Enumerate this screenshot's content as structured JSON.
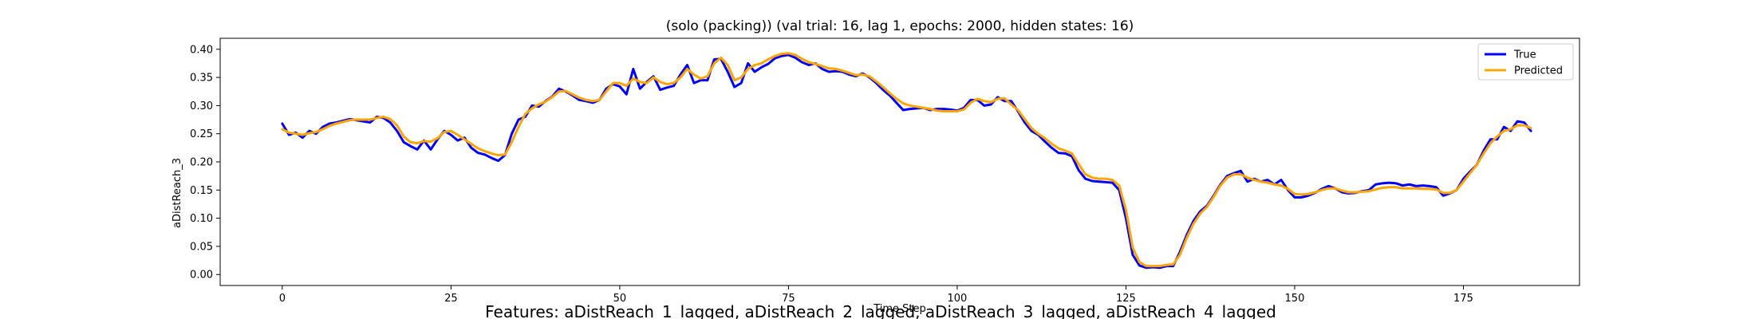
{
  "chart_data": {
    "type": "line",
    "title": "(solo (packing)) (val trial: 16, lag 1, epochs: 2000, hidden states: 16)",
    "xlabel": "Time Step",
    "ylabel": "aDistReach_3",
    "caption": "Features: aDistReach_1_lagged, aDistReach_2_lagged, aDistReach_3_lagged, aDistReach_4_lagged",
    "xlim": [
      -9.2,
      192.2
    ],
    "ylim": [
      -0.0195,
      0.4195
    ],
    "xticks": [
      0,
      25,
      50,
      75,
      100,
      125,
      150,
      175
    ],
    "yticks": [
      0.0,
      0.05,
      0.1,
      0.15,
      0.2,
      0.25,
      0.3,
      0.35,
      0.4
    ],
    "ytick_labels": [
      "0.00",
      "0.05",
      "0.10",
      "0.15",
      "0.20",
      "0.25",
      "0.30",
      "0.35",
      "0.40"
    ],
    "grid": false,
    "legend_position": "top-right",
    "series": [
      {
        "name": "True",
        "color": "#0000ff",
        "values": [
          0.268,
          0.248,
          0.252,
          0.243,
          0.255,
          0.25,
          0.262,
          0.268,
          0.27,
          0.273,
          0.276,
          0.274,
          0.272,
          0.27,
          0.28,
          0.278,
          0.27,
          0.255,
          0.235,
          0.228,
          0.222,
          0.238,
          0.222,
          0.24,
          0.255,
          0.248,
          0.238,
          0.243,
          0.225,
          0.216,
          0.213,
          0.207,
          0.202,
          0.212,
          0.25,
          0.275,
          0.28,
          0.3,
          0.298,
          0.308,
          0.316,
          0.33,
          0.325,
          0.318,
          0.31,
          0.308,
          0.305,
          0.31,
          0.33,
          0.338,
          0.334,
          0.32,
          0.365,
          0.33,
          0.342,
          0.352,
          0.328,
          0.332,
          0.335,
          0.355,
          0.372,
          0.34,
          0.345,
          0.345,
          0.382,
          0.383,
          0.36,
          0.333,
          0.34,
          0.375,
          0.36,
          0.368,
          0.374,
          0.384,
          0.388,
          0.39,
          0.385,
          0.377,
          0.372,
          0.375,
          0.365,
          0.36,
          0.361,
          0.36,
          0.355,
          0.352,
          0.357,
          0.35,
          0.34,
          0.328,
          0.318,
          0.305,
          0.292,
          0.294,
          0.295,
          0.296,
          0.292,
          0.294,
          0.294,
          0.293,
          0.291,
          0.296,
          0.31,
          0.31,
          0.3,
          0.302,
          0.315,
          0.308,
          0.308,
          0.29,
          0.27,
          0.255,
          0.248,
          0.236,
          0.225,
          0.216,
          0.215,
          0.21,
          0.185,
          0.17,
          0.166,
          0.165,
          0.164,
          0.163,
          0.15,
          0.1,
          0.035,
          0.016,
          0.012,
          0.013,
          0.012,
          0.015,
          0.015,
          0.04,
          0.07,
          0.095,
          0.112,
          0.122,
          0.14,
          0.16,
          0.175,
          0.18,
          0.184,
          0.165,
          0.17,
          0.165,
          0.168,
          0.16,
          0.168,
          0.15,
          0.137,
          0.137,
          0.14,
          0.145,
          0.152,
          0.157,
          0.153,
          0.146,
          0.144,
          0.145,
          0.148,
          0.15,
          0.16,
          0.162,
          0.163,
          0.162,
          0.158,
          0.16,
          0.157,
          0.158,
          0.157,
          0.155,
          0.14,
          0.144,
          0.15,
          0.17,
          0.183,
          0.195,
          0.22,
          0.24,
          0.24,
          0.262,
          0.255,
          0.272,
          0.27,
          0.255
        ]
      },
      {
        "name": "Predicted",
        "color": "#ffa500",
        "values": [
          0.258,
          0.252,
          0.25,
          0.248,
          0.251,
          0.253,
          0.258,
          0.264,
          0.268,
          0.271,
          0.274,
          0.275,
          0.275,
          0.275,
          0.278,
          0.28,
          0.276,
          0.265,
          0.245,
          0.235,
          0.233,
          0.237,
          0.236,
          0.242,
          0.253,
          0.255,
          0.248,
          0.24,
          0.232,
          0.224,
          0.219,
          0.215,
          0.212,
          0.213,
          0.235,
          0.262,
          0.285,
          0.295,
          0.302,
          0.307,
          0.315,
          0.325,
          0.326,
          0.32,
          0.314,
          0.31,
          0.308,
          0.31,
          0.325,
          0.34,
          0.34,
          0.335,
          0.348,
          0.342,
          0.34,
          0.35,
          0.342,
          0.338,
          0.34,
          0.35,
          0.365,
          0.355,
          0.348,
          0.352,
          0.375,
          0.385,
          0.372,
          0.345,
          0.35,
          0.365,
          0.372,
          0.375,
          0.382,
          0.388,
          0.392,
          0.393,
          0.39,
          0.383,
          0.377,
          0.374,
          0.37,
          0.366,
          0.365,
          0.362,
          0.358,
          0.354,
          0.355,
          0.352,
          0.343,
          0.333,
          0.322,
          0.312,
          0.304,
          0.3,
          0.298,
          0.296,
          0.294,
          0.291,
          0.29,
          0.29,
          0.29,
          0.293,
          0.305,
          0.312,
          0.308,
          0.306,
          0.312,
          0.313,
          0.302,
          0.292,
          0.276,
          0.26,
          0.25,
          0.242,
          0.232,
          0.224,
          0.22,
          0.215,
          0.196,
          0.178,
          0.172,
          0.17,
          0.17,
          0.168,
          0.158,
          0.115,
          0.048,
          0.022,
          0.015,
          0.015,
          0.015,
          0.017,
          0.018,
          0.035,
          0.065,
          0.09,
          0.108,
          0.12,
          0.138,
          0.158,
          0.172,
          0.178,
          0.178,
          0.172,
          0.168,
          0.165,
          0.163,
          0.16,
          0.158,
          0.152,
          0.143,
          0.142,
          0.143,
          0.146,
          0.15,
          0.153,
          0.153,
          0.149,
          0.146,
          0.146,
          0.147,
          0.148,
          0.151,
          0.154,
          0.155,
          0.155,
          0.153,
          0.153,
          0.153,
          0.152,
          0.152,
          0.151,
          0.145,
          0.145,
          0.15,
          0.165,
          0.18,
          0.195,
          0.215,
          0.233,
          0.245,
          0.255,
          0.258,
          0.265,
          0.265,
          0.26
        ]
      }
    ]
  }
}
